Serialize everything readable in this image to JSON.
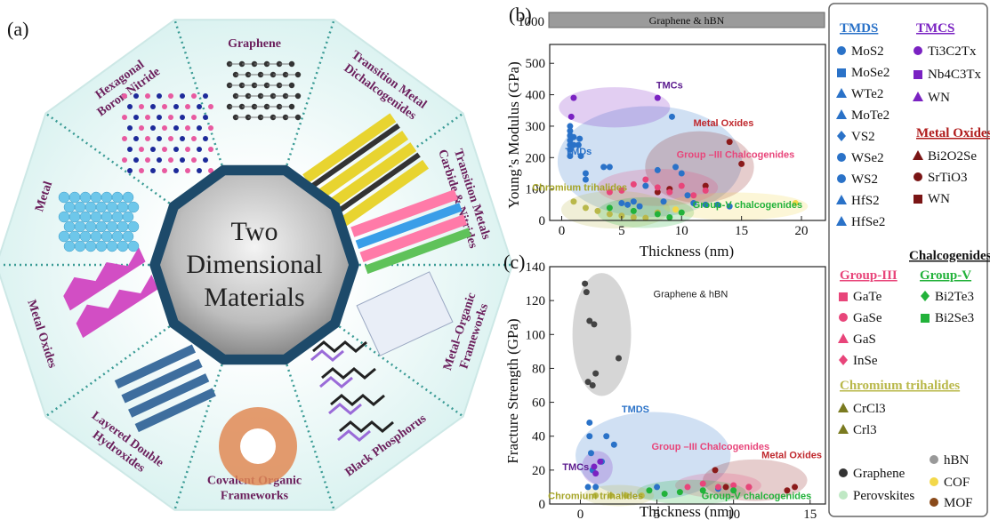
{
  "panel_a": {
    "label": "(a)",
    "center_text": [
      "Two",
      "Dimensional",
      "Materials"
    ],
    "wedges": [
      {
        "lines": [
          "Graphene"
        ]
      },
      {
        "lines": [
          "Transition Metal",
          "Dichalcogenides"
        ]
      },
      {
        "lines": [
          "Transition Metals",
          "Carbide & Nitrides"
        ]
      },
      {
        "lines": [
          "Metal–Organic",
          "Frameworks"
        ]
      },
      {
        "lines": [
          "Black Phosphorus"
        ]
      },
      {
        "lines": [
          "Covalent Organic",
          "Frameworks"
        ]
      },
      {
        "lines": [
          "Layered Double",
          "Hydroxides"
        ]
      },
      {
        "lines": [
          "Metal Oxides"
        ]
      },
      {
        "lines": [
          "Metal"
        ]
      },
      {
        "lines": [
          "Hexagonal",
          "Boron Nitride"
        ]
      }
    ]
  },
  "legend": {
    "tmds": {
      "title": "TMDS",
      "color": "#2a72c8",
      "items": [
        "MoS2",
        "MoSe2",
        "WTe2",
        "MoTe2",
        "VS2",
        "WSe2",
        "WS2",
        "HfS2",
        "HfSe2"
      ]
    },
    "tmcs": {
      "title": "TMCS",
      "color": "#7a22c2",
      "items": [
        "Ti3C2Tx",
        "Nb4C3Tx",
        "WN"
      ]
    },
    "metal_oxides": {
      "title": "Metal Oxides",
      "color": "#b01c1c",
      "items": [
        "Bi2O2Se",
        "SrTiO3",
        "WN"
      ]
    },
    "chalcogenides_title": "Chalcogenides",
    "group3": {
      "title": "Group-III",
      "color": "#e8457a",
      "items": [
        "GaTe",
        "GaSe",
        "GaS",
        "InSe"
      ]
    },
    "group5": {
      "title": "Group-V",
      "color": "#22b23a",
      "items": [
        "Bi2Te3",
        "Bi2Se3"
      ]
    },
    "chromium": {
      "title": "Chromium trihalides",
      "color": "#b9b84a",
      "items": [
        "CrCl3",
        "Crl3"
      ]
    },
    "others": {
      "graphene": "Graphene",
      "hbn": "hBN",
      "perovskites": "Perovskites",
      "cof": "COF",
      "mof": "MOF"
    }
  },
  "chart_data": [
    {
      "id": "b",
      "panel_label": "(b)",
      "type": "scatter",
      "xlabel": "Thickness (nm)",
      "ylabel": "Young’s Modulus (GPa)",
      "xlim": [
        -1,
        22
      ],
      "ylim": [
        0,
        560
      ],
      "xticks": [
        0,
        5,
        10,
        15,
        20
      ],
      "yticks": [
        0,
        100,
        200,
        300,
        400,
        500
      ],
      "broken_axis_tick": "1000",
      "top_band_label": "Graphene & hBN",
      "region_labels": [
        {
          "text": "TMCs",
          "color": "#5a1a8e"
        },
        {
          "text": "TMDs",
          "color": "#2a72c8"
        },
        {
          "text": "Metal Oxides",
          "color": "#c0282d"
        },
        {
          "text": "Group –III Chalcogenides",
          "color": "#e8457a"
        },
        {
          "text": "Chromium trihalides",
          "color": "#a5a426"
        },
        {
          "text": "Group-V chalcogenides",
          "color": "#22b23a"
        }
      ],
      "series": [
        {
          "name": "TMDS",
          "color": "#2a72c8",
          "points": [
            [
              0.7,
              300
            ],
            [
              0.7,
              285
            ],
            [
              0.7,
              270
            ],
            [
              0.7,
              255
            ],
            [
              0.7,
              240
            ],
            [
              0.7,
              225
            ],
            [
              0.7,
              205
            ],
            [
              1.0,
              265
            ],
            [
              1.0,
              240
            ],
            [
              1.4,
              240
            ],
            [
              1.5,
              260
            ],
            [
              1.6,
              205
            ],
            [
              2.0,
              150
            ],
            [
              2.0,
              130
            ],
            [
              3.5,
              170
            ],
            [
              4.0,
              170
            ],
            [
              5.0,
              55
            ],
            [
              5.5,
              50
            ],
            [
              6.0,
              60
            ],
            [
              6.5,
              45
            ],
            [
              7.0,
              110
            ],
            [
              8.0,
              160
            ],
            [
              8.5,
              60
            ],
            [
              9.2,
              330
            ],
            [
              9.5,
              170
            ],
            [
              10.0,
              150
            ],
            [
              10.5,
              80
            ],
            [
              11.0,
              55
            ],
            [
              12.0,
              50
            ],
            [
              13.0,
              50
            ],
            [
              14.0,
              45
            ]
          ]
        },
        {
          "name": "TMCS",
          "color": "#7a22c2",
          "points": [
            [
              0.8,
              330
            ],
            [
              1.0,
              390
            ],
            [
              8.0,
              390
            ]
          ]
        },
        {
          "name": "Metal Oxides",
          "color": "#8b1a1a",
          "points": [
            [
              8.0,
              90
            ],
            [
              9.0,
              100
            ],
            [
              12.0,
              110
            ],
            [
              14.0,
              250
            ],
            [
              15.0,
              180
            ]
          ]
        },
        {
          "name": "Group-III",
          "color": "#e8457a",
          "points": [
            [
              4.0,
              90
            ],
            [
              5.0,
              95
            ],
            [
              6.0,
              115
            ],
            [
              7.0,
              130
            ],
            [
              8.0,
              105
            ],
            [
              9.0,
              90
            ],
            [
              10.0,
              110
            ],
            [
              11.0,
              80
            ],
            [
              12.0,
              95
            ]
          ]
        },
        {
          "name": "Chromium",
          "color": "#b9b84a",
          "points": [
            [
              1.0,
              60
            ],
            [
              2.0,
              40
            ],
            [
              3.0,
              30
            ],
            [
              4.0,
              20
            ],
            [
              5.0,
              15
            ],
            [
              6.0,
              10
            ],
            [
              7.0,
              8
            ],
            [
              8.0,
              25
            ]
          ]
        },
        {
          "name": "Group-V",
          "color": "#22b23a",
          "points": [
            [
              4.0,
              40
            ],
            [
              6.0,
              30
            ],
            [
              8.0,
              20
            ],
            [
              9.0,
              10
            ],
            [
              10.0,
              25
            ]
          ]
        },
        {
          "name": "COF",
          "color": "#f3d84a",
          "points": [
            [
              9.5,
              35
            ],
            [
              19.5,
              55
            ]
          ]
        }
      ]
    },
    {
      "id": "c",
      "panel_label": "(c)",
      "type": "scatter",
      "xlabel": "Thickness (nm)",
      "ylabel": "Fracture Strength (GPa)",
      "xlim": [
        -2,
        16
      ],
      "ylim": [
        0,
        140
      ],
      "xticks": [
        0,
        5,
        10,
        15
      ],
      "yticks": [
        0,
        20,
        40,
        60,
        80,
        100,
        120,
        140
      ],
      "region_labels": [
        {
          "text": "Graphene & hBN",
          "color": "#222222"
        },
        {
          "text": "TMDS",
          "color": "#2a72c8"
        },
        {
          "text": "TMCs",
          "color": "#5a1a8e"
        },
        {
          "text": "Group –III Chalcogenides",
          "color": "#e8457a"
        },
        {
          "text": "Metal Oxides",
          "color": "#c0282d"
        },
        {
          "text": "Chromium trihalides",
          "color": "#a5a426"
        },
        {
          "text": "Group-V chalcogenides",
          "color": "#22b23a"
        }
      ],
      "series": [
        {
          "name": "Graphene & hBN",
          "color": "#444444",
          "points": [
            [
              0.3,
              130
            ],
            [
              0.4,
              125
            ],
            [
              0.6,
              108
            ],
            [
              0.9,
              106
            ],
            [
              0.5,
              72
            ],
            [
              0.8,
              70
            ],
            [
              1.0,
              77
            ],
            [
              2.5,
              86
            ]
          ]
        },
        {
          "name": "TMDS",
          "color": "#2a72c8",
          "points": [
            [
              0.6,
              48
            ],
            [
              0.6,
              40
            ],
            [
              0.7,
              30
            ],
            [
              0.8,
              20
            ],
            [
              1.0,
              10
            ],
            [
              1.4,
              25
            ],
            [
              1.7,
              40
            ],
            [
              2.2,
              35
            ],
            [
              0.5,
              10
            ],
            [
              5.0,
              10
            ],
            [
              9.0,
              9
            ]
          ]
        },
        {
          "name": "TMCS",
          "color": "#7a22c2",
          "points": [
            [
              0.9,
              22
            ],
            [
              1.3,
              25
            ],
            [
              1.0,
              18
            ]
          ]
        },
        {
          "name": "Metal Oxides",
          "color": "#8b1a1a",
          "points": [
            [
              8.8,
              20
            ],
            [
              9.5,
              10
            ],
            [
              11.0,
              10
            ],
            [
              14.0,
              10
            ],
            [
              13.5,
              8
            ]
          ]
        },
        {
          "name": "Group-III",
          "color": "#e8457a",
          "points": [
            [
              7.0,
              10
            ],
            [
              8.0,
              12
            ],
            [
              9.0,
              10
            ],
            [
              10.0,
              11
            ],
            [
              11.0,
              10
            ]
          ]
        },
        {
          "name": "Group-V",
          "color": "#22b23a",
          "points": [
            [
              4.5,
              8
            ],
            [
              5.5,
              6
            ],
            [
              6.5,
              7
            ],
            [
              8.0,
              8
            ],
            [
              10.0,
              8
            ]
          ]
        },
        {
          "name": "Chromium",
          "color": "#b9b84a",
          "points": [
            [
              1.0,
              5
            ],
            [
              2.0,
              5
            ],
            [
              3.0,
              5
            ],
            [
              4.0,
              5
            ]
          ]
        }
      ]
    }
  ]
}
